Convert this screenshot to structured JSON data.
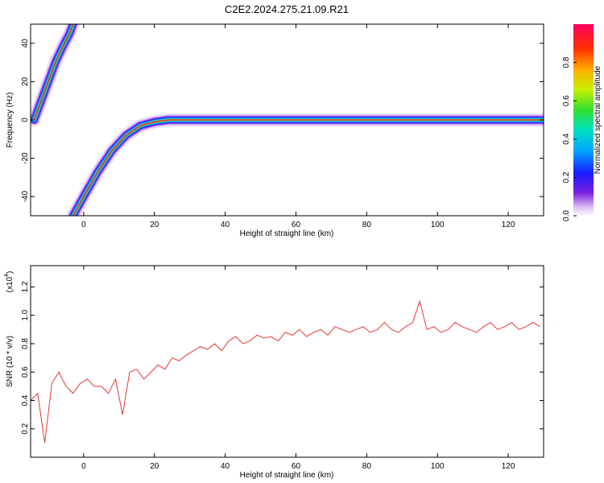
{
  "title": "C2E2.2024.275.21.09.R21",
  "chart_data": [
    {
      "type": "heatmap",
      "xlabel": "Height of straight line (km)",
      "ylabel": "Frequency (Hz)",
      "xlim": [
        -15,
        130
      ],
      "ylim": [
        -50,
        50
      ],
      "x_ticks": [
        0,
        20,
        40,
        60,
        80,
        100,
        120
      ],
      "y_ticks": [
        -40,
        -20,
        0,
        20,
        40
      ],
      "colorbar": {
        "label": "Normalized spectral amplitude",
        "range": [
          0,
          1
        ],
        "ticks": [
          "0.0",
          "0.2",
          "0.4",
          "0.6",
          "0.8"
        ]
      },
      "traces": [
        {
          "name": "upper trace",
          "x": [
            -14,
            -12,
            -10,
            -8,
            -6,
            -4,
            -3
          ],
          "y": [
            0,
            10,
            20,
            30,
            38,
            45,
            50
          ]
        },
        {
          "name": "main trace",
          "x": [
            -3,
            0,
            4,
            8,
            12,
            16,
            20,
            24,
            30,
            36,
            50,
            70,
            90,
            110,
            130
          ],
          "y": [
            -50,
            -40,
            -27,
            -16,
            -8,
            -3,
            -1,
            0,
            0,
            0,
            0,
            0,
            0,
            0,
            0
          ]
        }
      ]
    },
    {
      "type": "line",
      "xlabel": "Height of straight line (km)",
      "ylabel": "SNR (10 * v/v)",
      "y_multiplier": "(x10",
      "y_multiplier_exp": "4",
      "xlim": [
        -15,
        130
      ],
      "ylim": [
        0,
        1.35
      ],
      "x_ticks": [
        0,
        20,
        40,
        60,
        80,
        100,
        120
      ],
      "y_ticks": [
        0.2,
        0.4,
        0.6,
        0.8,
        1.0,
        1.2
      ],
      "series": [
        {
          "x": [
            -15,
            -13,
            -11,
            -9,
            -7,
            -5,
            -3,
            -1,
            1,
            3,
            5,
            7,
            9,
            11,
            13,
            15,
            17,
            19,
            21,
            23,
            25,
            27,
            29,
            31,
            33,
            35,
            37,
            39,
            41,
            43,
            45,
            47,
            49,
            51,
            53,
            55,
            57,
            59,
            61,
            63,
            65,
            67,
            69,
            71,
            73,
            75,
            77,
            79,
            81,
            83,
            85,
            87,
            89,
            91,
            93,
            95,
            97,
            99,
            101,
            103,
            105,
            107,
            109,
            111,
            113,
            115,
            117,
            119,
            121,
            123,
            125,
            127,
            129
          ],
          "y": [
            0.4,
            0.45,
            0.1,
            0.52,
            0.6,
            0.5,
            0.45,
            0.52,
            0.55,
            0.5,
            0.5,
            0.45,
            0.55,
            0.3,
            0.6,
            0.62,
            0.55,
            0.6,
            0.65,
            0.62,
            0.7,
            0.68,
            0.72,
            0.75,
            0.78,
            0.76,
            0.8,
            0.75,
            0.82,
            0.85,
            0.8,
            0.82,
            0.86,
            0.84,
            0.85,
            0.82,
            0.88,
            0.86,
            0.9,
            0.85,
            0.88,
            0.9,
            0.86,
            0.92,
            0.9,
            0.88,
            0.9,
            0.92,
            0.88,
            0.9,
            0.95,
            0.9,
            0.88,
            0.92,
            0.95,
            1.1,
            0.9,
            0.92,
            0.88,
            0.9,
            0.95,
            0.92,
            0.9,
            0.88,
            0.92,
            0.95,
            0.9,
            0.92,
            0.95,
            0.9,
            0.92,
            0.95,
            0.92
          ],
          "color": "#e53935"
        }
      ]
    }
  ]
}
